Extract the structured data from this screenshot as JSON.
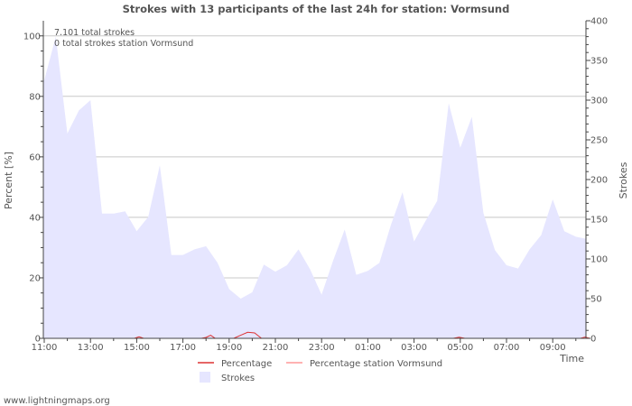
{
  "chart_data": {
    "type": "area",
    "title": "Strokes with 13 participants of the last 24h for station: Vormsund",
    "ylabel_left": "Percent   [%]",
    "ylabel_right": "Strokes",
    "xlabel": "Time",
    "y_left": {
      "min": 0,
      "max": 105,
      "ticks": [
        0,
        20,
        40,
        60,
        80,
        100
      ]
    },
    "y_right": {
      "min": 0,
      "max": 400,
      "ticks": [
        0,
        50,
        100,
        150,
        200,
        250,
        300,
        350,
        400
      ]
    },
    "x_tick_labels": [
      "11:00",
      "13:00",
      "15:00",
      "17:00",
      "19:00",
      "21:00",
      "23:00",
      "01:00",
      "03:00",
      "05:00",
      "07:00",
      "09:00"
    ],
    "annotations": [
      "7.101 total strokes",
      "0 total strokes station Vormsund"
    ],
    "legend": [
      {
        "name": "Percentage",
        "color": "#dd3333",
        "kind": "line"
      },
      {
        "name": "Percentage station Vormsund",
        "color": "#ff9999",
        "kind": "line"
      },
      {
        "name": "Strokes",
        "color": "#e6e6ff",
        "kind": "area"
      }
    ],
    "strokes": {
      "hours_from_start": [
        0,
        0.5,
        1,
        1.5,
        2,
        2.5,
        3,
        3.5,
        4,
        4.5,
        5,
        5.5,
        6,
        6.5,
        7,
        7.5,
        8,
        8.5,
        9,
        9.5,
        10,
        10.5,
        11,
        11.5,
        12,
        12.5,
        13,
        13.5,
        14,
        14.5,
        15,
        15.5,
        16,
        16.5,
        17,
        17.5,
        18,
        18.5,
        19,
        19.5,
        20,
        20.5,
        21,
        21.5,
        22,
        22.5,
        23,
        23.5
      ],
      "values": [
        325,
        380,
        258,
        287,
        300,
        157,
        157,
        160,
        135,
        153,
        218,
        105,
        105,
        112,
        116,
        95,
        62,
        50,
        58,
        93,
        84,
        92,
        112,
        87,
        55,
        98,
        137,
        80,
        85,
        95,
        143,
        184,
        122,
        148,
        173,
        296,
        240,
        279,
        158,
        111,
        92,
        88,
        112,
        130,
        175,
        135,
        128,
        125
      ]
    },
    "percentage": {
      "hours_from_start": [
        3.9,
        4.1,
        4.3,
        6.8,
        7.0,
        7.2,
        7.4,
        8.2,
        8.5,
        8.8,
        9.1,
        9.4,
        17.7,
        17.95,
        18.2,
        23.2,
        23.4,
        23.6
      ],
      "values": [
        0,
        0.5,
        0,
        0,
        0.3,
        1,
        0,
        0,
        1,
        2,
        1.8,
        0,
        0,
        0.4,
        0,
        0,
        0.4,
        0
      ]
    },
    "percentage_station": {
      "values": []
    }
  },
  "footer": {
    "site": "www.lightningmaps.org"
  }
}
